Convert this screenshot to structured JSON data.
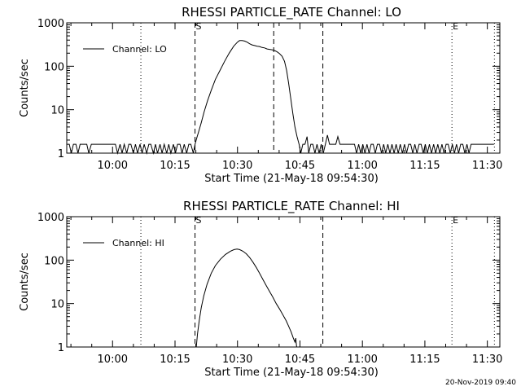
{
  "footer_timestamp": "20-Nov-2019 09:40",
  "chart_data": [
    {
      "type": "line",
      "title": "RHESSI PARTICLE_RATE Channel: LO",
      "xlabel": "Start Time (21-May-18 09:54:30)",
      "ylabel": "Counts/sec",
      "y_scale": "log",
      "ylim": [
        1,
        1000
      ],
      "y_tick_labels": [
        "1",
        "10",
        "100",
        "1000"
      ],
      "y_tick_values": [
        1,
        10,
        100,
        1000
      ],
      "xlim_minutes": [
        -5.5,
        98.5
      ],
      "x_tick_labels": [
        "10:00",
        "10:15",
        "10:30",
        "10:45",
        "11:00",
        "11:15",
        "11:30"
      ],
      "x_tick_values": [
        5.5,
        20.5,
        35.5,
        50.5,
        65.5,
        80.5,
        95.5
      ],
      "legend": "Channel: LO",
      "legend_position": "top-left",
      "markers": [
        {
          "minute": 12.3,
          "style": "dotted",
          "label": ""
        },
        {
          "minute": 25.3,
          "style": "dashed",
          "label": "S"
        },
        {
          "minute": 44.2,
          "style": "dashed",
          "label": ""
        },
        {
          "minute": 56.0,
          "style": "dashed",
          "label": ""
        },
        {
          "minute": 87.0,
          "style": "dotted",
          "label": "E"
        },
        {
          "minute": 97.2,
          "style": "dotted",
          "label": ""
        }
      ],
      "series": [
        {
          "name": "Channel: LO",
          "baseline_noise": true,
          "points": [
            [
              -5.5,
              1.6
            ],
            [
              -4.9,
              1.6
            ],
            [
              -4.4,
              1.0
            ],
            [
              -3.9,
              1.6
            ],
            [
              -3.3,
              1.6
            ],
            [
              -2.8,
              1.0
            ],
            [
              -2.3,
              1.6
            ],
            [
              -1.7,
              1.6
            ],
            [
              -1.2,
              1.6
            ],
            [
              -0.7,
              1.6
            ],
            [
              -0.2,
              1.0
            ],
            [
              0.4,
              1.6
            ],
            [
              0.9,
              1.6
            ],
            [
              1.4,
              1.6
            ],
            [
              2.0,
              1.6
            ],
            [
              2.5,
              1.6
            ],
            [
              3.0,
              1.6
            ],
            [
              3.6,
              1.6
            ],
            [
              4.1,
              1.6
            ],
            [
              4.6,
              1.6
            ],
            [
              5.2,
              1.6
            ],
            [
              5.7,
              1.6
            ],
            [
              6.2,
              1.6
            ],
            [
              6.7,
              1.0
            ],
            [
              7.3,
              1.6
            ],
            [
              7.8,
              1.0
            ],
            [
              8.3,
              1.6
            ],
            [
              8.9,
              1.0
            ],
            [
              9.4,
              1.6
            ],
            [
              9.9,
              1.6
            ],
            [
              10.5,
              1.0
            ],
            [
              11.0,
              1.6
            ],
            [
              11.5,
              1.0
            ],
            [
              12.1,
              1.6
            ],
            [
              12.6,
              1.0
            ],
            [
              13.1,
              1.6
            ],
            [
              13.7,
              1.0
            ],
            [
              14.2,
              1.6
            ],
            [
              14.7,
              1.6
            ],
            [
              15.3,
              1.0
            ],
            [
              15.8,
              1.6
            ],
            [
              16.3,
              1.0
            ],
            [
              16.9,
              1.6
            ],
            [
              17.4,
              1.0
            ],
            [
              17.9,
              1.6
            ],
            [
              18.5,
              1.0
            ],
            [
              19.0,
              1.6
            ],
            [
              19.5,
              1.0
            ],
            [
              20.1,
              1.6
            ],
            [
              20.6,
              1.0
            ],
            [
              21.1,
              1.6
            ],
            [
              21.7,
              1.6
            ],
            [
              22.2,
              1.0
            ],
            [
              22.7,
              1.6
            ],
            [
              23.3,
              1.0
            ],
            [
              23.8,
              1.6
            ],
            [
              24.3,
              1.6
            ],
            [
              24.9,
              1.0
            ],
            [
              25.3,
              1.6
            ],
            [
              25.7,
              2.2
            ],
            [
              26.2,
              3.2
            ],
            [
              26.8,
              5.0
            ],
            [
              27.5,
              9
            ],
            [
              28.3,
              16
            ],
            [
              29.2,
              28
            ],
            [
              30.2,
              50
            ],
            [
              31.3,
              80
            ],
            [
              32.4,
              130
            ],
            [
              33.5,
              200
            ],
            [
              34.6,
              290
            ],
            [
              35.5,
              360
            ],
            [
              36.0,
              390
            ],
            [
              36.6,
              390
            ],
            [
              37.2,
              380
            ],
            [
              37.8,
              360
            ],
            [
              38.4,
              330
            ],
            [
              39.0,
              310
            ],
            [
              39.6,
              300
            ],
            [
              40.2,
              290
            ],
            [
              40.8,
              285
            ],
            [
              41.4,
              270
            ],
            [
              42.0,
              265
            ],
            [
              42.6,
              250
            ],
            [
              43.2,
              245
            ],
            [
              43.8,
              240
            ],
            [
              44.4,
              230
            ],
            [
              45.0,
              215
            ],
            [
              45.6,
              195
            ],
            [
              46.2,
              170
            ],
            [
              46.8,
              130
            ],
            [
              47.3,
              80
            ],
            [
              47.8,
              40
            ],
            [
              48.3,
              18
            ],
            [
              48.8,
              8
            ],
            [
              49.3,
              4
            ],
            [
              49.8,
              2.4
            ],
            [
              50.3,
              1.6
            ],
            [
              50.7,
              1.0
            ],
            [
              51.2,
              1.6
            ],
            [
              51.7,
              1.6
            ],
            [
              52.2,
              2.4
            ],
            [
              52.6,
              1.0
            ],
            [
              53.1,
              1.6
            ],
            [
              53.6,
              1.6
            ],
            [
              54.1,
              1.0
            ],
            [
              54.6,
              1.6
            ],
            [
              55.1,
              1.0
            ],
            [
              55.6,
              1.6
            ],
            [
              56.1,
              1.0
            ],
            [
              56.6,
              1.6
            ],
            [
              57.1,
              2.6
            ],
            [
              57.6,
              1.6
            ],
            [
              58.1,
              1.6
            ],
            [
              58.6,
              1.6
            ],
            [
              59.1,
              1.6
            ],
            [
              59.6,
              2.4
            ],
            [
              60.1,
              1.6
            ],
            [
              60.6,
              1.6
            ],
            [
              61.1,
              1.6
            ],
            [
              61.6,
              1.6
            ],
            [
              62.1,
              1.6
            ],
            [
              62.6,
              1.6
            ],
            [
              63.1,
              1.6
            ],
            [
              63.6,
              1.6
            ],
            [
              64.1,
              1.0
            ],
            [
              64.6,
              1.6
            ],
            [
              65.1,
              1.0
            ],
            [
              65.6,
              1.6
            ],
            [
              66.1,
              1.0
            ],
            [
              66.6,
              1.6
            ],
            [
              67.1,
              1.0
            ],
            [
              67.6,
              1.6
            ],
            [
              68.1,
              1.6
            ],
            [
              68.6,
              1.0
            ],
            [
              69.1,
              1.6
            ],
            [
              69.6,
              1.6
            ],
            [
              70.1,
              1.0
            ],
            [
              70.6,
              1.6
            ],
            [
              71.1,
              1.0
            ],
            [
              71.6,
              1.6
            ],
            [
              72.1,
              1.0
            ],
            [
              72.6,
              1.6
            ],
            [
              73.1,
              1.0
            ],
            [
              73.6,
              1.6
            ],
            [
              74.1,
              1.0
            ],
            [
              74.6,
              1.6
            ],
            [
              75.1,
              1.0
            ],
            [
              75.6,
              1.6
            ],
            [
              76.1,
              1.0
            ],
            [
              76.6,
              1.6
            ],
            [
              77.1,
              1.6
            ],
            [
              77.6,
              1.0
            ],
            [
              78.1,
              1.6
            ],
            [
              78.6,
              1.0
            ],
            [
              79.1,
              1.6
            ],
            [
              79.6,
              1.6
            ],
            [
              80.1,
              1.0
            ],
            [
              80.6,
              1.6
            ],
            [
              81.1,
              1.0
            ],
            [
              81.6,
              1.6
            ],
            [
              82.1,
              1.0
            ],
            [
              82.6,
              1.6
            ],
            [
              83.1,
              1.0
            ],
            [
              83.6,
              1.6
            ],
            [
              84.1,
              1.0
            ],
            [
              84.6,
              1.6
            ],
            [
              85.1,
              1.0
            ],
            [
              85.6,
              1.6
            ],
            [
              86.1,
              1.6
            ],
            [
              86.6,
              1.0
            ],
            [
              87.1,
              1.6
            ],
            [
              87.6,
              1.0
            ],
            [
              88.1,
              1.6
            ],
            [
              88.6,
              1.0
            ],
            [
              89.1,
              1.6
            ],
            [
              89.6,
              1.6
            ],
            [
              90.1,
              1.0
            ],
            [
              90.6,
              1.6
            ],
            [
              91.1,
              1.0
            ],
            [
              91.6,
              1.6
            ],
            [
              92.1,
              1.6
            ],
            [
              92.6,
              1.6
            ],
            [
              93.1,
              1.6
            ],
            [
              93.6,
              1.6
            ],
            [
              94.1,
              1.6
            ],
            [
              94.6,
              1.6
            ],
            [
              95.1,
              1.6
            ],
            [
              95.6,
              1.6
            ],
            [
              96.1,
              1.6
            ],
            [
              96.6,
              1.6
            ],
            [
              97.1,
              1.6
            ]
          ]
        }
      ]
    },
    {
      "type": "line",
      "title": "RHESSI PARTICLE_RATE Channel: HI",
      "xlabel": "Start Time (21-May-18 09:54:30)",
      "ylabel": "Counts/sec",
      "y_scale": "log",
      "ylim": [
        1,
        1000
      ],
      "y_tick_labels": [
        "1",
        "10",
        "100",
        "1000"
      ],
      "y_tick_values": [
        1,
        10,
        100,
        1000
      ],
      "xlim_minutes": [
        -5.5,
        98.5
      ],
      "x_tick_labels": [
        "10:00",
        "10:15",
        "10:30",
        "10:45",
        "11:00",
        "11:15",
        "11:30"
      ],
      "x_tick_values": [
        5.5,
        20.5,
        35.5,
        50.5,
        65.5,
        80.5,
        95.5
      ],
      "legend": "Channel: HI",
      "legend_position": "top-left",
      "markers": [
        {
          "minute": 12.3,
          "style": "dotted",
          "label": ""
        },
        {
          "minute": 25.3,
          "style": "dashed",
          "label": "S"
        },
        {
          "minute": 56.0,
          "style": "dashed",
          "label": ""
        },
        {
          "minute": 87.0,
          "style": "dotted",
          "label": "E"
        },
        {
          "minute": 97.2,
          "style": "dotted",
          "label": ""
        }
      ],
      "series": [
        {
          "name": "Channel: HI",
          "baseline_noise": false,
          "points": [
            [
              25.6,
              1.0
            ],
            [
              25.9,
              2.0
            ],
            [
              26.3,
              4.0
            ],
            [
              26.8,
              8
            ],
            [
              27.4,
              15
            ],
            [
              28.2,
              28
            ],
            [
              29.2,
              50
            ],
            [
              30.2,
              75
            ],
            [
              31.4,
              105
            ],
            [
              32.6,
              135
            ],
            [
              33.8,
              160
            ],
            [
              34.7,
              175
            ],
            [
              35.4,
              180
            ],
            [
              36.0,
              175
            ],
            [
              36.8,
              160
            ],
            [
              37.6,
              140
            ],
            [
              38.4,
              115
            ],
            [
              39.2,
              90
            ],
            [
              40.0,
              68
            ],
            [
              40.8,
              50
            ],
            [
              41.6,
              36
            ],
            [
              42.4,
              26
            ],
            [
              43.2,
              19
            ],
            [
              44.0,
              14
            ],
            [
              44.8,
              10
            ],
            [
              45.6,
              7.5
            ],
            [
              46.4,
              5.5
            ],
            [
              47.2,
              4.0
            ],
            [
              47.8,
              3.0
            ],
            [
              48.4,
              2.2
            ],
            [
              48.9,
              1.6
            ],
            [
              49.3,
              1.3
            ],
            [
              49.5,
              1.6
            ],
            [
              49.7,
              1.0
            ]
          ]
        }
      ]
    }
  ]
}
